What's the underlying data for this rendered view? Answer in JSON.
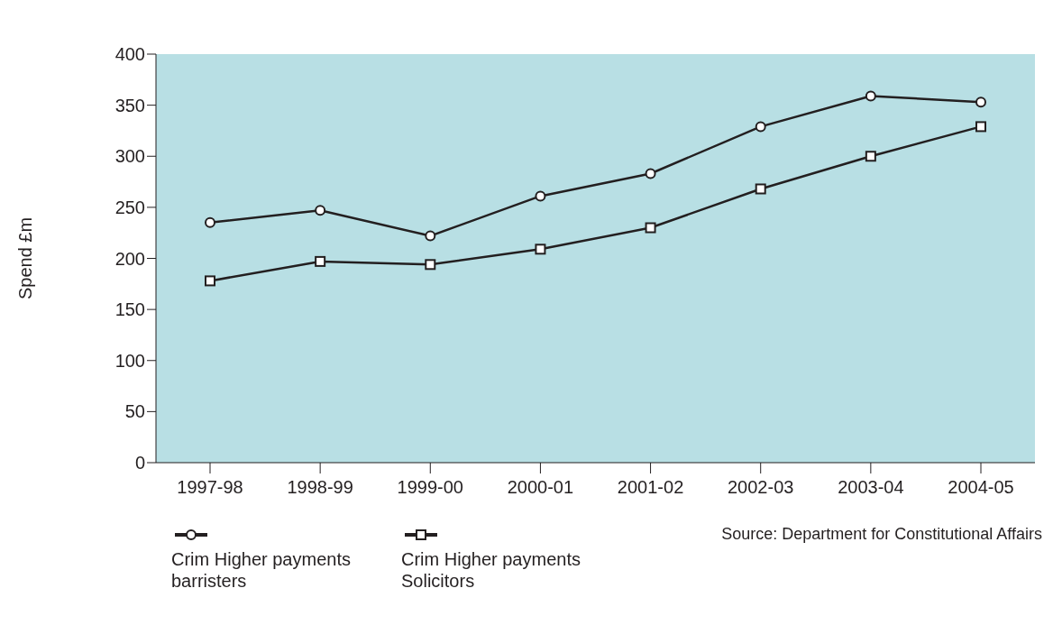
{
  "chart_data": {
    "type": "line",
    "ylabel": "Spend £m",
    "categories": [
      "1997-98",
      "1998-99",
      "1999-00",
      "2000-01",
      "2001-02",
      "2002-03",
      "2003-04",
      "2004-05"
    ],
    "series": [
      {
        "name": "Crim Higher payments barristers",
        "color": "#231f20",
        "marker": "circle",
        "values": [
          235,
          247,
          222,
          261,
          283,
          329,
          359,
          353
        ]
      },
      {
        "name": "Crim Higher payments Solicitors",
        "color": "#231f20",
        "marker": "square",
        "values": [
          178,
          197,
          194,
          209,
          230,
          268,
          300,
          329
        ]
      }
    ],
    "ylim": [
      0,
      400
    ],
    "yticks": [
      0,
      50,
      100,
      150,
      200,
      250,
      300,
      350,
      400
    ],
    "grid": false,
    "legend": "bottom left",
    "annotations": [
      "Source: Department for Constitutional Affairs"
    ]
  }
}
